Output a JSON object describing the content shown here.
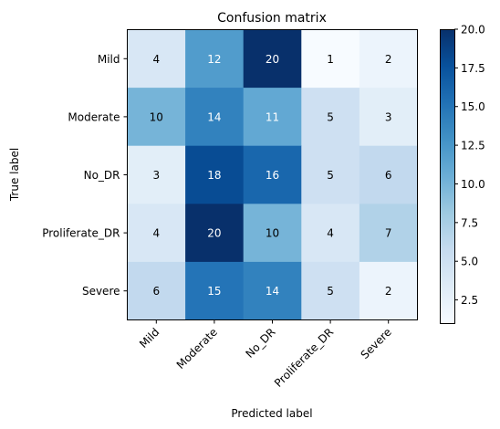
{
  "chart_data": {
    "type": "heatmap",
    "title": "Confusion matrix",
    "xlabel": "Predicted label",
    "ylabel": "True label",
    "x_categories": [
      "Mild",
      "Moderate",
      "No_DR",
      "Proliferate_DR",
      "Severe"
    ],
    "y_categories": [
      "Mild",
      "Moderate",
      "No_DR",
      "Proliferate_DR",
      "Severe"
    ],
    "values": [
      [
        4,
        12,
        20,
        1,
        2
      ],
      [
        10,
        14,
        11,
        5,
        3
      ],
      [
        3,
        18,
        16,
        5,
        6
      ],
      [
        4,
        20,
        10,
        4,
        7
      ],
      [
        6,
        15,
        14,
        5,
        2
      ]
    ],
    "colorbar": {
      "min": 1,
      "max": 20,
      "ticks": [
        2.5,
        5.0,
        7.5,
        10.0,
        12.5,
        15.0,
        17.5,
        20.0
      ],
      "tick_labels": [
        "2.5",
        "5.0",
        "7.5",
        "10.0",
        "12.5",
        "15.0",
        "17.5",
        "20.0"
      ]
    },
    "colormap": "Blues",
    "colormap_stops": [
      "#f7fbff",
      "#deebf7",
      "#c6dbef",
      "#9ecae1",
      "#6baed6",
      "#4292c6",
      "#2171b5",
      "#08519c",
      "#08306b"
    ],
    "x_tick_rotation_deg": 45
  }
}
